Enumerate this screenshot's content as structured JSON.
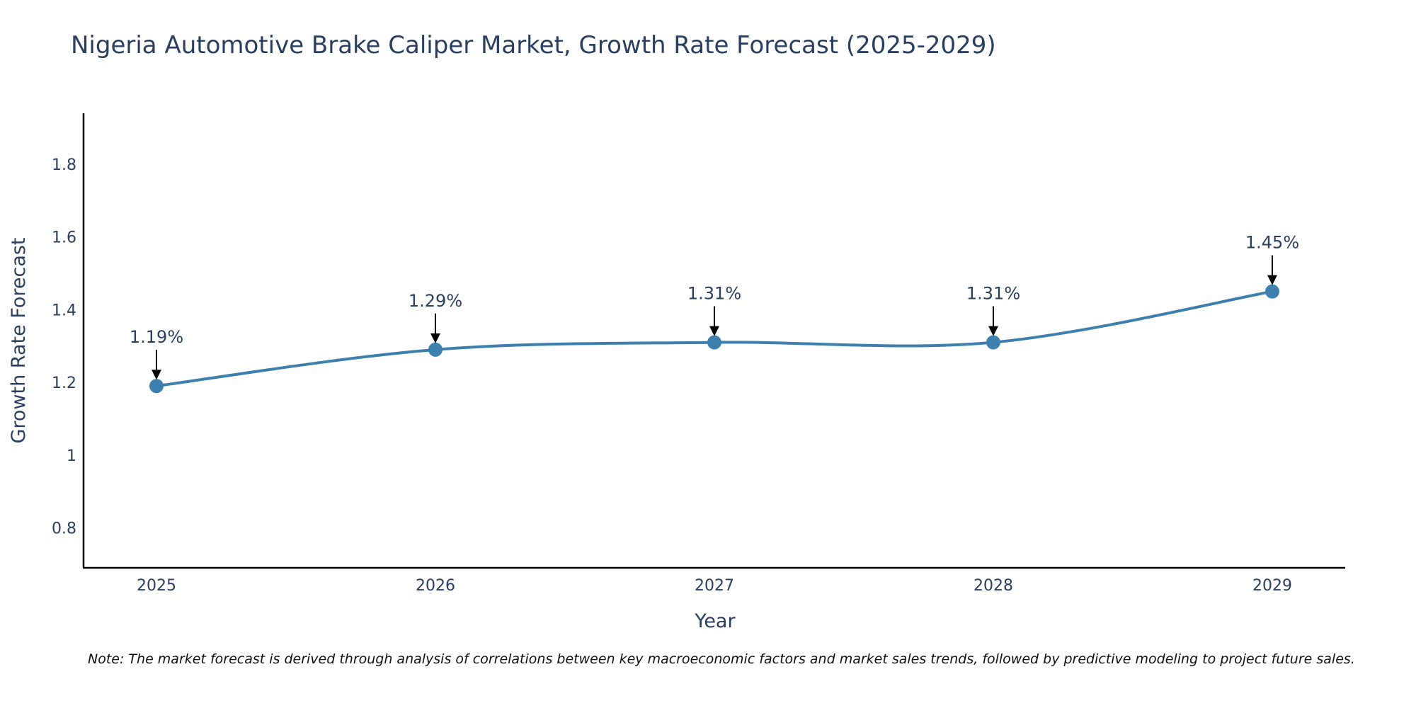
{
  "chart_data": {
    "type": "line",
    "title": "Nigeria Automotive Brake Caliper Market, Growth Rate Forecast (2025-2029)",
    "xlabel": "Year",
    "ylabel": "Growth Rate Forecast",
    "categories": [
      "2025",
      "2026",
      "2027",
      "2028",
      "2029"
    ],
    "values": [
      1.19,
      1.29,
      1.31,
      1.31,
      1.45
    ],
    "data_labels": [
      "1.19%",
      "1.29%",
      "1.31%",
      "1.31%",
      "1.45%"
    ],
    "ylim": [
      0.69,
      1.94
    ],
    "yticks": [
      0.8,
      1,
      1.2,
      1.4,
      1.6,
      1.8
    ],
    "ytick_labels": [
      "0.8",
      "1",
      "1.2",
      "1.4",
      "1.6",
      "1.8"
    ],
    "grid": false,
    "line_color": "#3d7fad",
    "marker_color": "#3d7fad",
    "arrow_color": "#000000",
    "note": "Note: The market forecast is derived through analysis of correlations between key macroeconomic factors and market sales trends, followed by predictive modeling to project future sales."
  }
}
